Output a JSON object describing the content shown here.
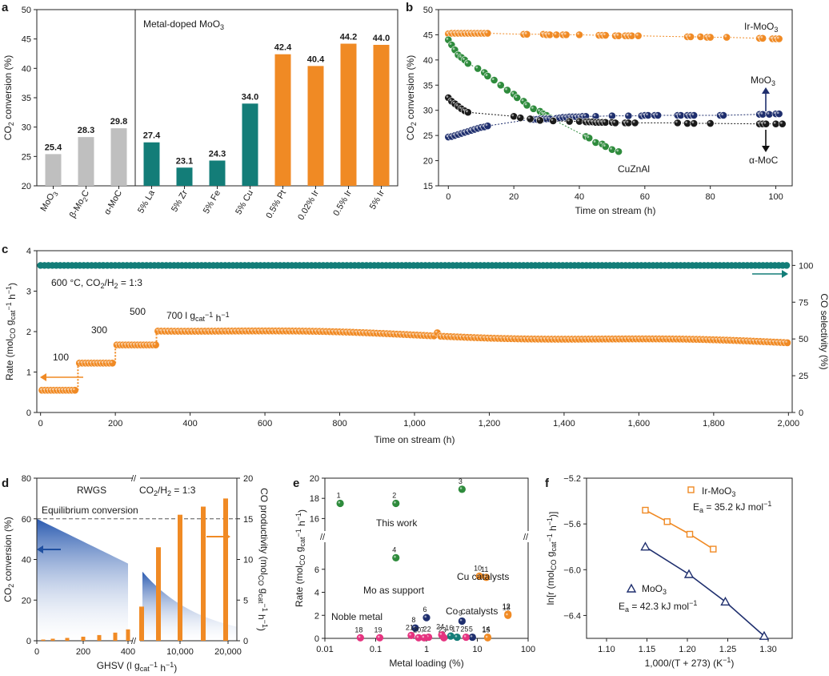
{
  "panels": {
    "a": "a",
    "b": "b",
    "c": "c",
    "d": "d",
    "e": "e",
    "f": "f"
  },
  "colors": {
    "grey": "#bfbfbf",
    "teal": "#137d78",
    "orange": "#f08a24",
    "green": "#2e8b3c",
    "navy": "#1f2f6e",
    "black": "#1a1a1a",
    "magenta": "#e5337f",
    "blue": "#1f4fa0"
  },
  "chart_data": [
    {
      "id": "a",
      "type": "bar",
      "title": "",
      "ylabel": "CO2 conversion (%)",
      "ylim": [
        20,
        50
      ],
      "yticks": [
        20,
        25,
        30,
        35,
        40,
        45,
        50
      ],
      "annotation": "Metal-doped MoO3",
      "categories": [
        "MoO3",
        "β-Mo2C",
        "α-MoC",
        "5% La",
        "5% Zr",
        "5% Fe",
        "5% Cu",
        "0.5% Pt",
        "0.02% Ir",
        "0.5% Ir",
        "5% Ir"
      ],
      "values": [
        25.4,
        28.3,
        29.8,
        27.4,
        23.1,
        24.3,
        34.0,
        42.4,
        40.4,
        44.2,
        44.0
      ],
      "value_labels": [
        "25.4",
        "28.3",
        "29.8",
        "27.4",
        "23.1",
        "24.3",
        "34.0",
        "42.4",
        "40.4",
        "44.2",
        "44.0"
      ],
      "bar_colors": [
        "grey",
        "grey",
        "grey",
        "teal",
        "teal",
        "teal",
        "teal",
        "orange",
        "orange",
        "orange",
        "orange"
      ]
    },
    {
      "id": "b",
      "type": "line",
      "xlabel": "Time on stream (h)",
      "ylabel": "CO2 conversion (%)",
      "xlim": [
        -3,
        105
      ],
      "ylim": [
        15,
        50
      ],
      "xticks": [
        0,
        20,
        40,
        60,
        80,
        100
      ],
      "yticks": [
        15,
        20,
        25,
        30,
        35,
        40,
        45,
        50
      ],
      "series": [
        {
          "name": "Ir-MoO3",
          "color": "orange",
          "x": [
            0,
            1,
            2,
            3,
            4,
            5,
            6,
            7,
            8,
            9,
            10,
            11,
            12,
            23,
            24,
            29,
            30,
            31,
            33,
            35,
            36,
            40,
            46,
            47,
            48,
            51,
            52,
            54,
            55,
            56,
            58,
            73,
            74,
            77,
            79,
            80,
            85,
            95,
            96,
            99,
            100,
            101
          ],
          "y": [
            45.2,
            45.3,
            45.3,
            45.3,
            45.3,
            45.3,
            45.3,
            45.3,
            45.3,
            45.3,
            45.3,
            45.3,
            45.3,
            45.1,
            45.1,
            45.1,
            45.0,
            45.0,
            45.0,
            45.0,
            45.0,
            45.0,
            44.9,
            44.9,
            44.9,
            44.8,
            44.8,
            44.8,
            44.8,
            44.8,
            44.8,
            44.6,
            44.6,
            44.6,
            44.5,
            44.5,
            44.5,
            44.3,
            44.3,
            44.2,
            44.2,
            44.2
          ]
        },
        {
          "name": "CuZnAl",
          "color": "green",
          "x": [
            0,
            1,
            2,
            3,
            4,
            5,
            6,
            9,
            11,
            12,
            14,
            16,
            18,
            20,
            21,
            23,
            24,
            26,
            28,
            29,
            30,
            31,
            42,
            43,
            45,
            47,
            48,
            50,
            52
          ],
          "y": [
            44,
            43,
            42,
            41,
            40.5,
            40,
            39.3,
            38.3,
            37.5,
            36.8,
            36,
            35,
            34,
            33.2,
            32.5,
            31.8,
            31,
            30.3,
            29.8,
            29.3,
            29,
            28.5,
            24.8,
            24.5,
            23.6,
            23.3,
            22.8,
            22.2,
            21.8
          ]
        },
        {
          "name": "MoO3",
          "color": "navy",
          "x": [
            0,
            1,
            2,
            3,
            4,
            5,
            6,
            7,
            8,
            9,
            10,
            11,
            12,
            25,
            26,
            27,
            28,
            29,
            30,
            31,
            33,
            34,
            35,
            36,
            37,
            38,
            39,
            40,
            41,
            42,
            45,
            50,
            55,
            59,
            60,
            61,
            63,
            64,
            70,
            71,
            73,
            74,
            75,
            83,
            84,
            95,
            96,
            98,
            100,
            101
          ],
          "y": [
            24.7,
            24.8,
            25,
            25.2,
            25.4,
            25.6,
            25.8,
            26,
            26.2,
            26.4,
            26.6,
            26.7,
            26.9,
            28.2,
            28.2,
            28.2,
            28.3,
            28.3,
            28.3,
            28.3,
            28.4,
            28.5,
            28.6,
            28.6,
            28.7,
            28.7,
            28.7,
            28.7,
            28.8,
            28.8,
            28.8,
            28.9,
            28.9,
            28.9,
            29,
            29,
            29,
            29,
            29,
            29,
            29,
            29,
            29,
            29,
            29,
            29.2,
            29.2,
            29.2,
            29.3,
            29.3
          ]
        },
        {
          "name": "α-MoC",
          "color": "black",
          "x": [
            0,
            1,
            2,
            3,
            4,
            5,
            6,
            20,
            22,
            25,
            28,
            32,
            37,
            40,
            42,
            43,
            44,
            45,
            46,
            47,
            48,
            50,
            51,
            54,
            55,
            57,
            70,
            73,
            75,
            80,
            95,
            96,
            97,
            100,
            102
          ],
          "y": [
            32.5,
            31.8,
            31.3,
            30.8,
            30.3,
            29.9,
            29.6,
            28.8,
            28.5,
            28.3,
            28,
            27.9,
            27.8,
            27.8,
            27.7,
            27.7,
            27.7,
            27.6,
            27.6,
            27.6,
            27.6,
            27.6,
            27.5,
            27.5,
            27.5,
            27.5,
            27.5,
            27.4,
            27.4,
            27.4,
            27.3,
            27.3,
            27.3,
            27.3,
            27.3
          ]
        }
      ],
      "labels": [
        "Ir-MoO3",
        "MoO3",
        "CuZnAl",
        "α-MoC"
      ]
    },
    {
      "id": "c",
      "type": "scatter",
      "xlabel": "Time on stream (h)",
      "ylabel": "Rate (molCO gcat−1 h−1)",
      "y2label": "CO selectivity (%)",
      "xlim": [
        -10,
        2010
      ],
      "ylim": [
        0,
        4
      ],
      "y2lim": [
        0,
        110
      ],
      "xticks": [
        0,
        200,
        400,
        600,
        800,
        1000,
        1200,
        1400,
        1600,
        1800,
        2000
      ],
      "xtick_labels": [
        "0",
        "200",
        "400",
        "600",
        "800",
        "1,000",
        "1,200",
        "1,400",
        "1,600",
        "1,800",
        "2,000"
      ],
      "yticks": [
        0,
        1,
        2,
        3,
        4
      ],
      "y2ticks": [
        0,
        25,
        50,
        75,
        100
      ],
      "condition": "600 °C, CO2/H2 = 1:3",
      "ghsv_labels": [
        "100",
        "300",
        "500",
        "700 l gcat−1 h−1"
      ],
      "selectivity_value": 100,
      "rate_steps": [
        {
          "ghsv": 100,
          "t_start": 0,
          "t_end": 100,
          "rate": 0.55
        },
        {
          "ghsv": 300,
          "t_start": 100,
          "t_end": 200,
          "rate": 1.22
        },
        {
          "ghsv": 500,
          "t_start": 200,
          "t_end": 310,
          "rate": 1.67
        },
        {
          "ghsv": 700,
          "t_start": 310,
          "t_end": 2000,
          "rate_start": 2.05,
          "rate_end": 1.72
        }
      ]
    },
    {
      "id": "d",
      "type": "bar",
      "xlabel": "GHSV (l gcat−1 h−1)",
      "ylabel": "CO2 conversion (%)",
      "y2label": "CO productivity (molCO gcat−1 h−1)",
      "ylim": [
        0,
        80
      ],
      "y2lim": [
        0,
        20
      ],
      "yticks": [
        0,
        20,
        40,
        60,
        80
      ],
      "y2ticks": [
        0,
        5,
        10,
        15,
        20
      ],
      "xtick_labels": [
        "0",
        "200",
        "400",
        "10,000",
        "20,000"
      ],
      "labels": [
        "RWGS",
        "CO2/H2 = 1:3",
        "Equilibrium conversion"
      ],
      "equilibrium": 60,
      "productivity_low": [
        0.15,
        0.25,
        0.35,
        0.5,
        0.7,
        1.0,
        1.4,
        1.8
      ],
      "productivity_high": [
        4.2,
        11.5,
        15.5,
        16.5,
        17.5
      ]
    },
    {
      "id": "e",
      "type": "scatter",
      "xlabel": "Metal loading (%)",
      "ylabel": "Rate (molCO gcat−1 h−1)",
      "xscale": "log",
      "xticks": [
        0.01,
        0.1,
        1,
        10,
        100
      ],
      "xtick_labels": [
        "0.01",
        "0.1",
        "1",
        "10",
        "100"
      ],
      "yticks_low": [
        0,
        2,
        4,
        6
      ],
      "yticks_high": [
        16,
        18,
        20
      ],
      "group_labels": [
        "This work",
        "Cu catalysts",
        "Mo as support",
        "Co catalysts",
        "Noble metal"
      ],
      "points": [
        {
          "n": "1",
          "x": 0.02,
          "y": 17.5,
          "c": "green"
        },
        {
          "n": "2",
          "x": 0.25,
          "y": 17.5,
          "c": "green"
        },
        {
          "n": "3",
          "x": 5,
          "y": 18.9,
          "c": "green"
        },
        {
          "n": "4",
          "x": 0.25,
          "y": 7.0,
          "c": "green"
        },
        {
          "n": "10",
          "x": 11,
          "y": 5.4,
          "c": "orange"
        },
        {
          "n": "11",
          "x": 15,
          "y": 5.3,
          "c": "orange"
        },
        {
          "n": "12",
          "x": 40,
          "y": 2.1,
          "c": "orange"
        },
        {
          "n": "13",
          "x": 40,
          "y": 2.0,
          "c": "orange"
        },
        {
          "n": "14",
          "x": 16,
          "y": 0.1,
          "c": "orange"
        },
        {
          "n": "15",
          "x": 16,
          "y": 0.05,
          "c": "orange"
        },
        {
          "n": "6",
          "x": 1,
          "y": 1.8,
          "c": "navy"
        },
        {
          "n": "9",
          "x": 5,
          "y": 1.5,
          "c": "navy"
        },
        {
          "n": "8",
          "x": 0.6,
          "y": 0.9,
          "c": "navy"
        },
        {
          "n": "5",
          "x": 8,
          "y": 0.1,
          "c": "navy"
        },
        {
          "n": "16",
          "x": 3,
          "y": 0.2,
          "c": "teal"
        },
        {
          "n": "17",
          "x": 4,
          "y": 0.1,
          "c": "teal"
        },
        {
          "n": "18",
          "x": 0.05,
          "y": 0.05,
          "c": "magenta"
        },
        {
          "n": "19",
          "x": 0.12,
          "y": 0.05,
          "c": "magenta"
        },
        {
          "n": "20",
          "x": 0.7,
          "y": 0.05,
          "c": "magenta"
        },
        {
          "n": "21",
          "x": 0.5,
          "y": 0.25,
          "c": "magenta"
        },
        {
          "n": "22",
          "x": 1.1,
          "y": 0.1,
          "c": "magenta"
        },
        {
          "n": "23",
          "x": 2.2,
          "y": 0.05,
          "c": "magenta"
        },
        {
          "n": "24",
          "x": 2.0,
          "y": 0.3,
          "c": "magenta"
        },
        {
          "n": "25",
          "x": 6,
          "y": 0.1,
          "c": "magenta"
        },
        {
          "n": "7",
          "x": 0.9,
          "y": 0.05,
          "c": "magenta"
        }
      ]
    },
    {
      "id": "f",
      "type": "line",
      "xlabel": "1,000/(T + 273) (K−1)",
      "ylabel": "ln[r (molCO gcat−1 h−1)]",
      "xlim": [
        1.1,
        1.3
      ],
      "ylim": [
        -6.6,
        -5.2
      ],
      "xticks": [
        1.1,
        1.15,
        1.2,
        1.25,
        1.3
      ],
      "yticks": [
        -5.2,
        -5.6,
        -6.0,
        -6.4
      ],
      "series": [
        {
          "name": "Ir-MoO3",
          "color": "orange",
          "ea": "Ea = 35.2 kJ mol−1",
          "x": [
            1.148,
            1.175,
            1.203,
            1.232
          ],
          "y": [
            -5.48,
            -5.58,
            -5.69,
            -5.82
          ]
        },
        {
          "name": "MoO3",
          "color": "navy",
          "ea": "Ea = 42.3 kJ mol−1",
          "x": [
            1.148,
            1.202,
            1.247,
            1.295
          ],
          "y": [
            -5.8,
            -6.04,
            -6.28,
            -6.58
          ]
        }
      ]
    }
  ]
}
